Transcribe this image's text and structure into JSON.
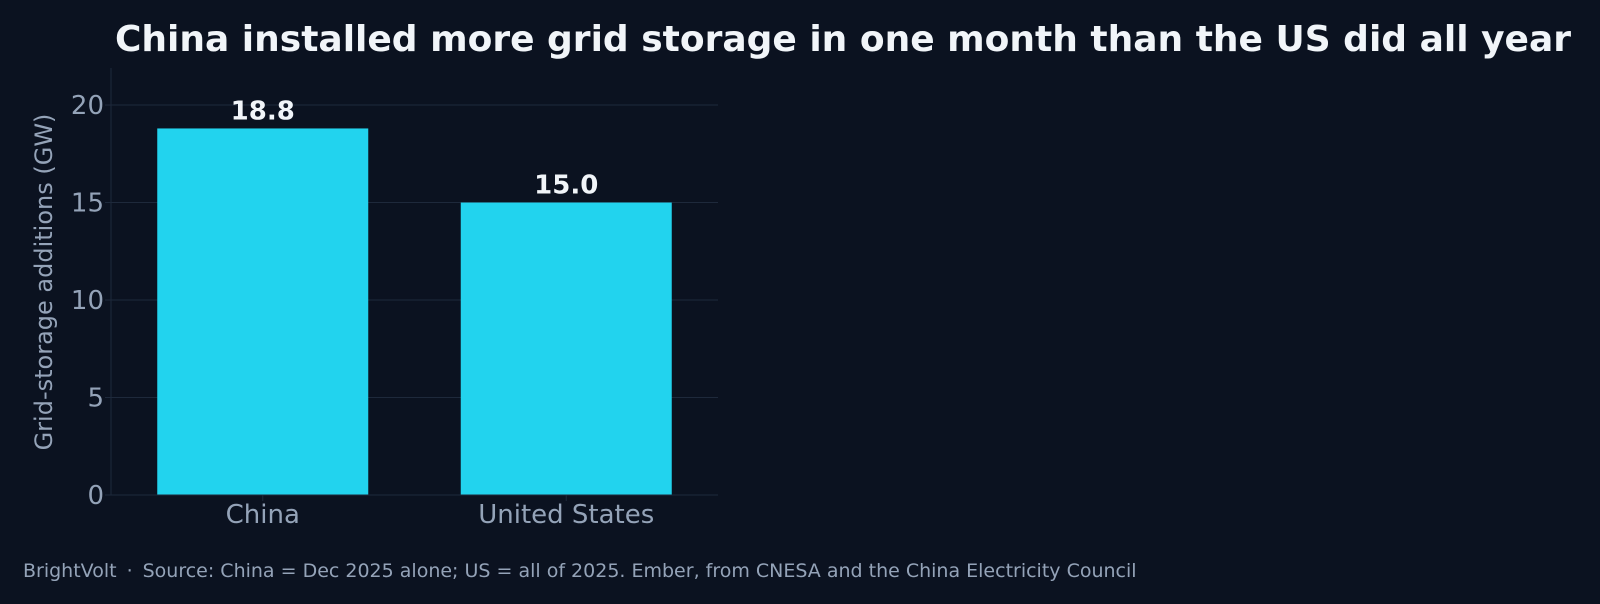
{
  "colors": {
    "background": "#0b1220",
    "bar": "#22d3ee",
    "title": "#f1f5f9",
    "data_label": "#f1f5f9",
    "muted_text": "#94a3b8",
    "grid": "#1e293b"
  },
  "footer": {
    "brand": "BrightVolt",
    "separator": "·",
    "source": "Source: China = Dec 2025 alone; US = all of 2025. Ember, from CNESA and the China Electricity Council"
  },
  "chart_data": {
    "type": "bar",
    "title": "China installed more grid storage in one month than the US did all year",
    "xlabel": "",
    "ylabel": "Grid-storage additions (GW)",
    "categories": [
      "China",
      "United States"
    ],
    "values": [
      18.8,
      15.0
    ],
    "data_labels": [
      "18.8",
      "15.0"
    ],
    "ylim": [
      0,
      21.9
    ],
    "yticks": [
      0,
      5,
      10,
      15,
      20
    ],
    "grid": true,
    "legend": "none"
  }
}
